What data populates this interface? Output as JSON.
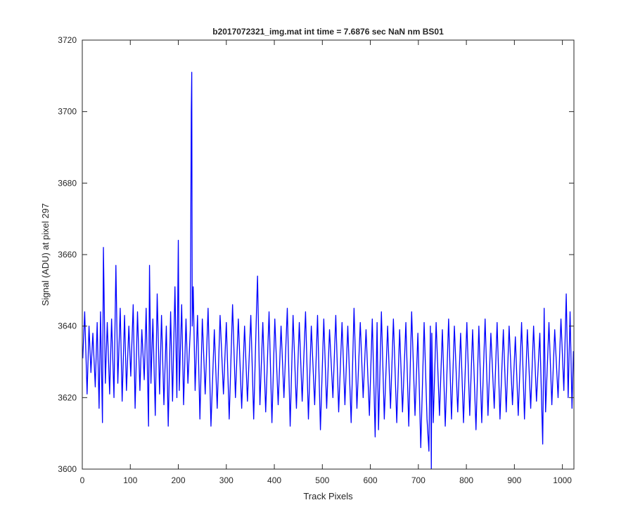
{
  "chart_data": {
    "type": "line",
    "title": "b2017072321_img.mat int time = 7.6876 sec  NaN nm BS01",
    "xlabel": "Track Pixels",
    "ylabel": "Signal (ADU) at pixel 297",
    "xlim": [
      0,
      1024
    ],
    "ylim": [
      3600,
      3720
    ],
    "xticks": [
      0,
      100,
      200,
      300,
      400,
      500,
      600,
      700,
      800,
      900,
      1000
    ],
    "xtick_labels": [
      "0",
      "100",
      "200",
      "300",
      "400",
      "500",
      "600",
      "700",
      "800",
      "900",
      "1000"
    ],
    "yticks": [
      3600,
      3620,
      3640,
      3660,
      3680,
      3700,
      3720
    ],
    "ytick_labels": [
      "3600",
      "3620",
      "3640",
      "3660",
      "3680",
      "3700",
      "3720"
    ],
    "grid": false,
    "legend": "none",
    "line_color": "#0000ff",
    "series": [
      {
        "x": [
          1,
          5,
          10,
          14,
          18,
          22,
          27,
          31,
          35,
          38,
          42,
          44,
          48,
          52,
          57,
          61,
          66,
          70,
          74,
          79,
          83,
          88,
          92,
          97,
          101,
          106,
          110,
          115,
          120,
          124,
          129,
          133,
          138,
          140,
          143,
          147,
          152,
          156,
          161,
          165,
          170,
          175,
          179,
          184,
          188,
          193,
          197,
          200,
          202,
          207,
          211,
          216,
          220,
          225,
          227,
          228,
          229,
          231,
          235,
          240,
          245,
          250,
          256,
          262,
          268,
          275,
          281,
          287,
          294,
          300,
          306,
          313,
          319,
          325,
          332,
          338,
          344,
          351,
          357,
          363,
          365,
          370,
          376,
          382,
          389,
          395,
          401,
          408,
          414,
          420,
          427,
          433,
          439,
          446,
          452,
          458,
          465,
          471,
          477,
          484,
          490,
          496,
          503,
          509,
          515,
          522,
          528,
          534,
          541,
          547,
          553,
          560,
          566,
          572,
          579,
          585,
          591,
          598,
          604,
          610,
          614,
          617,
          623,
          629,
          636,
          642,
          648,
          655,
          661,
          667,
          674,
          680,
          686,
          693,
          699,
          705,
          712,
          718,
          722,
          725,
          727,
          728,
          731,
          737,
          744,
          750,
          756,
          763,
          769,
          775,
          782,
          788,
          794,
          801,
          807,
          813,
          820,
          826,
          832,
          839,
          845,
          851,
          858,
          864,
          870,
          877,
          883,
          889,
          896,
          902,
          908,
          915,
          921,
          927,
          934,
          940,
          946,
          953,
          959,
          962,
          965,
          972,
          978,
          984,
          991,
          997,
          1003,
          1008,
          1012,
          1016,
          1020,
          1023
        ],
        "y": [
          3631,
          3644,
          3621,
          3640,
          3627,
          3638,
          3623,
          3641,
          3617,
          3644,
          3613,
          3662,
          3624,
          3641,
          3621,
          3642,
          3620,
          3657,
          3624,
          3645,
          3619,
          3643,
          3622,
          3640,
          3626,
          3646,
          3617,
          3644,
          3622,
          3639,
          3625,
          3645,
          3612,
          3657,
          3624,
          3642,
          3615,
          3649,
          3621,
          3643,
          3618,
          3640,
          3612,
          3644,
          3619,
          3651,
          3620,
          3664,
          3622,
          3646,
          3618,
          3642,
          3624,
          3639,
          3700,
          3711,
          3640,
          3651,
          3622,
          3643,
          3614,
          3642,
          3621,
          3645,
          3612,
          3639,
          3617,
          3643,
          3621,
          3641,
          3614,
          3646,
          3620,
          3642,
          3617,
          3640,
          3619,
          3643,
          3614,
          3645,
          3654,
          3618,
          3641,
          3616,
          3644,
          3613,
          3642,
          3618,
          3640,
          3620,
          3645,
          3612,
          3643,
          3617,
          3641,
          3619,
          3644,
          3614,
          3640,
          3618,
          3643,
          3611,
          3642,
          3617,
          3639,
          3620,
          3643,
          3616,
          3641,
          3618,
          3640,
          3613,
          3645,
          3617,
          3641,
          3620,
          3639,
          3615,
          3642,
          3609,
          3641,
          3611,
          3644,
          3614,
          3640,
          3617,
          3642,
          3613,
          3639,
          3616,
          3641,
          3612,
          3644,
          3615,
          3638,
          3606,
          3641,
          3614,
          3605,
          3640,
          3600,
          3638,
          3613,
          3641,
          3615,
          3639,
          3612,
          3642,
          3614,
          3640,
          3616,
          3638,
          3613,
          3641,
          3615,
          3639,
          3611,
          3640,
          3613,
          3642,
          3615,
          3638,
          3617,
          3641,
          3614,
          3639,
          3616,
          3640,
          3618,
          3637,
          3615,
          3641,
          3614,
          3639,
          3617,
          3640,
          3619,
          3638,
          3607,
          3645,
          3616,
          3641,
          3618,
          3639,
          3620,
          3642,
          3622,
          3649,
          3620,
          3644,
          3617,
          3633
        ]
      }
    ]
  }
}
